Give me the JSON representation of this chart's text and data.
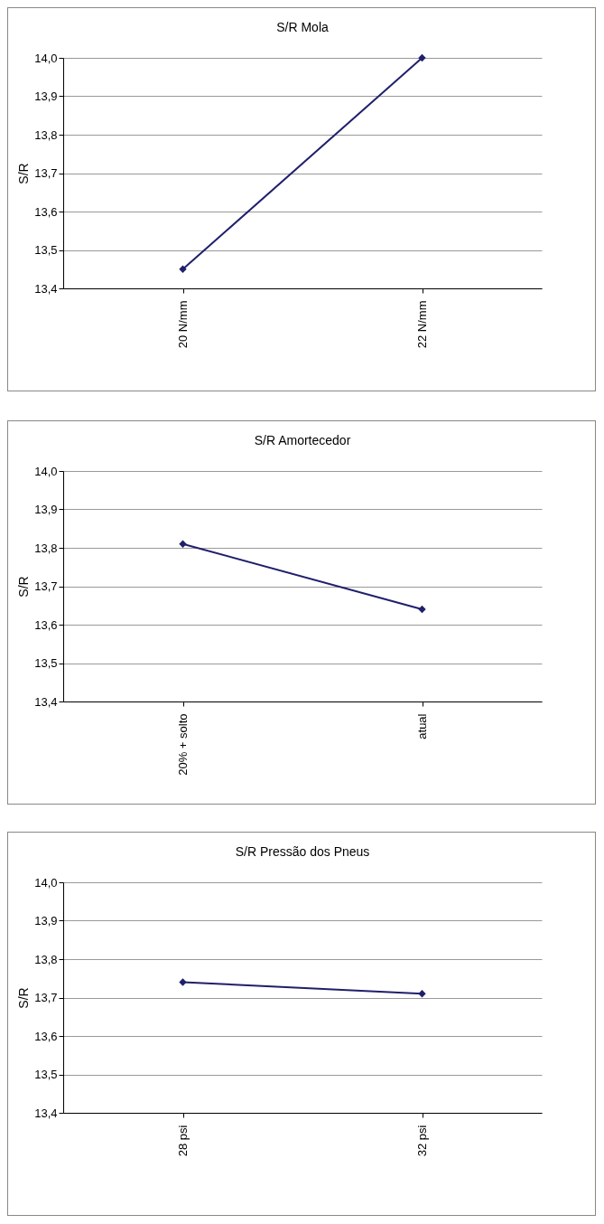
{
  "chart_data": [
    {
      "type": "line",
      "title": "S/R Mola",
      "ylabel": "S/R",
      "categories": [
        "20 N/mm",
        "22 N/mm"
      ],
      "series": [
        {
          "color": "#1f1f6b",
          "values": [
            13.45,
            14.0
          ]
        }
      ],
      "ylim": [
        13.4,
        14.0
      ],
      "yticks": [
        {
          "value": 13.4,
          "label": "13,4"
        },
        {
          "value": 13.5,
          "label": "13,5"
        },
        {
          "value": 13.6,
          "label": "13,6"
        },
        {
          "value": 13.7,
          "label": "13,7"
        },
        {
          "value": 13.8,
          "label": "13,8"
        },
        {
          "value": 13.9,
          "label": "13,9"
        },
        {
          "value": 14.0,
          "label": "14,0"
        }
      ],
      "grid": "y",
      "legend": false,
      "marker": "diamond",
      "line_style": "solid"
    },
    {
      "type": "line",
      "title": "S/R Amortecedor",
      "ylabel": "S/R",
      "categories": [
        "20% + solto",
        "atual"
      ],
      "series": [
        {
          "color": "#1f1f6b",
          "values": [
            13.81,
            13.64
          ]
        }
      ],
      "ylim": [
        13.4,
        14.0
      ],
      "yticks": [
        {
          "value": 13.4,
          "label": "13,4"
        },
        {
          "value": 13.5,
          "label": "13,5"
        },
        {
          "value": 13.6,
          "label": "13,6"
        },
        {
          "value": 13.7,
          "label": "13,7"
        },
        {
          "value": 13.8,
          "label": "13,8"
        },
        {
          "value": 13.9,
          "label": "13,9"
        },
        {
          "value": 14.0,
          "label": "14,0"
        }
      ],
      "grid": "y",
      "legend": false,
      "marker": "diamond",
      "line_style": "solid"
    },
    {
      "type": "line",
      "title": "S/R Pressão dos Pneus",
      "ylabel": "S/R",
      "categories": [
        "28 psi",
        "32 psi"
      ],
      "series": [
        {
          "color": "#1f1f6b",
          "values": [
            13.74,
            13.71
          ]
        }
      ],
      "ylim": [
        13.4,
        14.0
      ],
      "yticks": [
        {
          "value": 13.4,
          "label": "13,4"
        },
        {
          "value": 13.5,
          "label": "13,5"
        },
        {
          "value": 13.6,
          "label": "13,6"
        },
        {
          "value": 13.7,
          "label": "13,7"
        },
        {
          "value": 13.8,
          "label": "13,8"
        },
        {
          "value": 13.9,
          "label": "13,9"
        },
        {
          "value": 14.0,
          "label": "14,0"
        }
      ],
      "grid": "y",
      "legend": false,
      "marker": "diamond",
      "line_style": "solid"
    }
  ]
}
